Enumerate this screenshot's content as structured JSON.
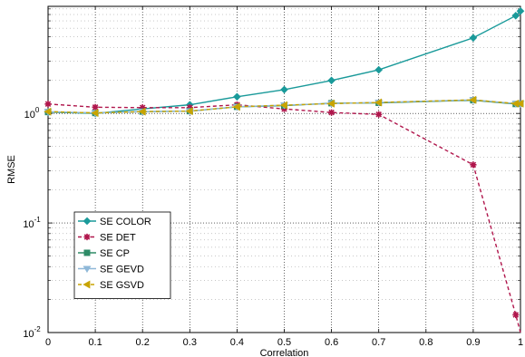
{
  "chart_data": {
    "type": "line",
    "title": "",
    "xlabel": "Correlation",
    "ylabel": "RMSE",
    "yscale": "log",
    "xlim": [
      0,
      1
    ],
    "ylim": [
      0.01,
      9.5
    ],
    "grid": true,
    "legend_position": "bottom-left",
    "x": [
      0,
      0.1,
      0.2,
      0.3,
      0.4,
      0.5,
      0.6,
      0.7,
      0.9,
      0.99,
      1.0
    ],
    "xticks": [
      "0",
      "0.1",
      "0.2",
      "0.3",
      "0.4",
      "0.5",
      "0.6",
      "0.7",
      "0.8",
      "0.9",
      "1"
    ],
    "yticks": [
      {
        "base": "10",
        "exp": "-2",
        "value": 0.01
      },
      {
        "base": "10",
        "exp": "-1",
        "value": 0.1
      },
      {
        "base": "10",
        "exp": "0",
        "value": 1
      }
    ],
    "series": [
      {
        "name": "SE COLOR",
        "color": "#1a9a9a",
        "dash": "solid",
        "marker": "diamond",
        "values": [
          1.03,
          1.0,
          1.1,
          1.2,
          1.42,
          1.65,
          2.0,
          2.5,
          4.9,
          7.8,
          8.6
        ]
      },
      {
        "name": "SE DET",
        "color": "#b0164c",
        "dash": "dashed",
        "marker": "star",
        "values": [
          1.22,
          1.14,
          1.13,
          1.13,
          1.2,
          1.1,
          1.02,
          0.98,
          0.34,
          0.0145,
          0.009
        ]
      },
      {
        "name": "SE CP",
        "color": "#2e8b67",
        "dash": "solid",
        "marker": "square",
        "values": [
          1.03,
          1.01,
          1.04,
          1.05,
          1.15,
          1.18,
          1.24,
          1.25,
          1.32,
          1.22,
          1.23
        ]
      },
      {
        "name": "SE GEVD",
        "color": "#8fb8d8",
        "dash": "solid",
        "marker": "triangle-down",
        "values": [
          1.04,
          1.01,
          1.04,
          1.05,
          1.15,
          1.19,
          1.23,
          1.26,
          1.33,
          1.23,
          1.23
        ]
      },
      {
        "name": "SE GSVD",
        "color": "#c8a400",
        "dash": "dashed",
        "marker": "triangle-left",
        "values": [
          1.04,
          1.01,
          1.04,
          1.05,
          1.15,
          1.19,
          1.23,
          1.26,
          1.33,
          1.23,
          1.23
        ]
      }
    ]
  }
}
